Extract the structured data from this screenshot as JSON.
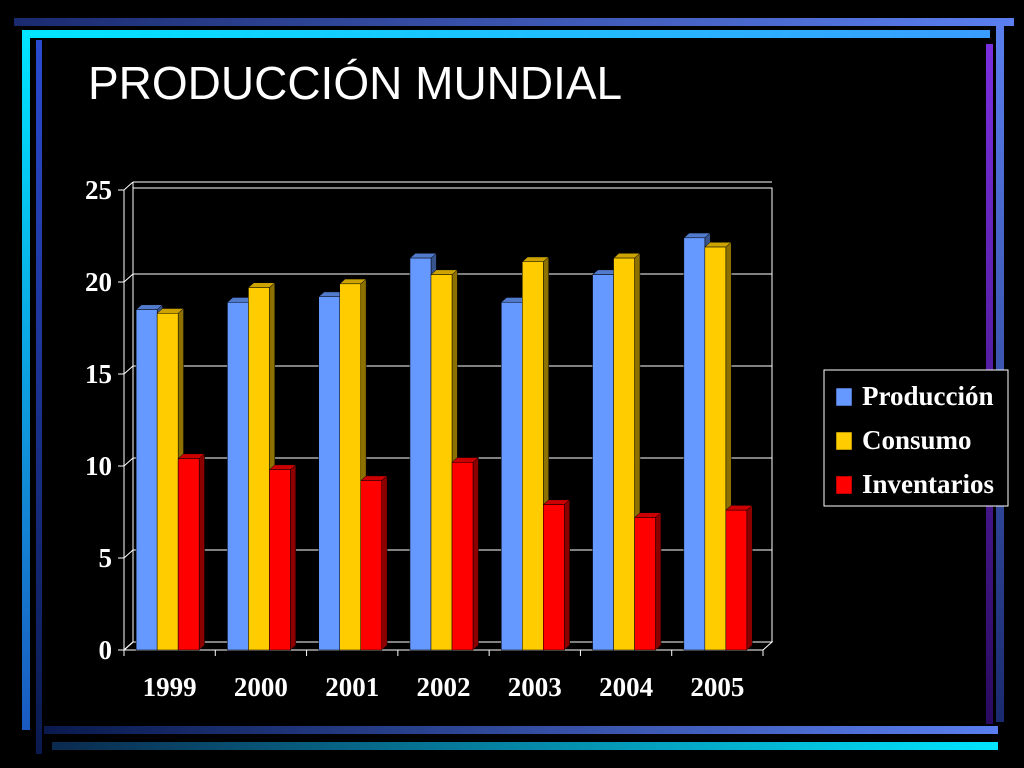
{
  "slide": {
    "title": "PRODUCCIÓN MUNDIAL"
  },
  "chart_data": {
    "type": "bar",
    "categories": [
      "1999",
      "2000",
      "2001",
      "2002",
      "2003",
      "2004",
      "2005"
    ],
    "series": [
      {
        "name": "Producción",
        "color": "#6699ff",
        "values": [
          18.5,
          18.9,
          19.2,
          21.3,
          18.9,
          20.4,
          22.4
        ]
      },
      {
        "name": "Consumo",
        "color": "#ffcc00",
        "values": [
          18.3,
          19.7,
          19.9,
          20.4,
          21.1,
          21.3,
          21.9
        ]
      },
      {
        "name": "Inventarios",
        "color": "#ff0000",
        "values": [
          10.4,
          9.8,
          9.2,
          10.2,
          7.9,
          7.2,
          7.6
        ]
      }
    ],
    "yticks": [
      "0",
      "5",
      "10",
      "15",
      "20",
      "25"
    ],
    "ylim": [
      0,
      25
    ],
    "grid": true,
    "legend_position": "right",
    "style": "3d-clustered-columns"
  },
  "theme": {
    "background": "#000000",
    "text": "#ffffff",
    "accent_blue": "#5b7ff0",
    "accent_cyan": "#00e5ff",
    "accent_purple": "#7b2fe0"
  }
}
